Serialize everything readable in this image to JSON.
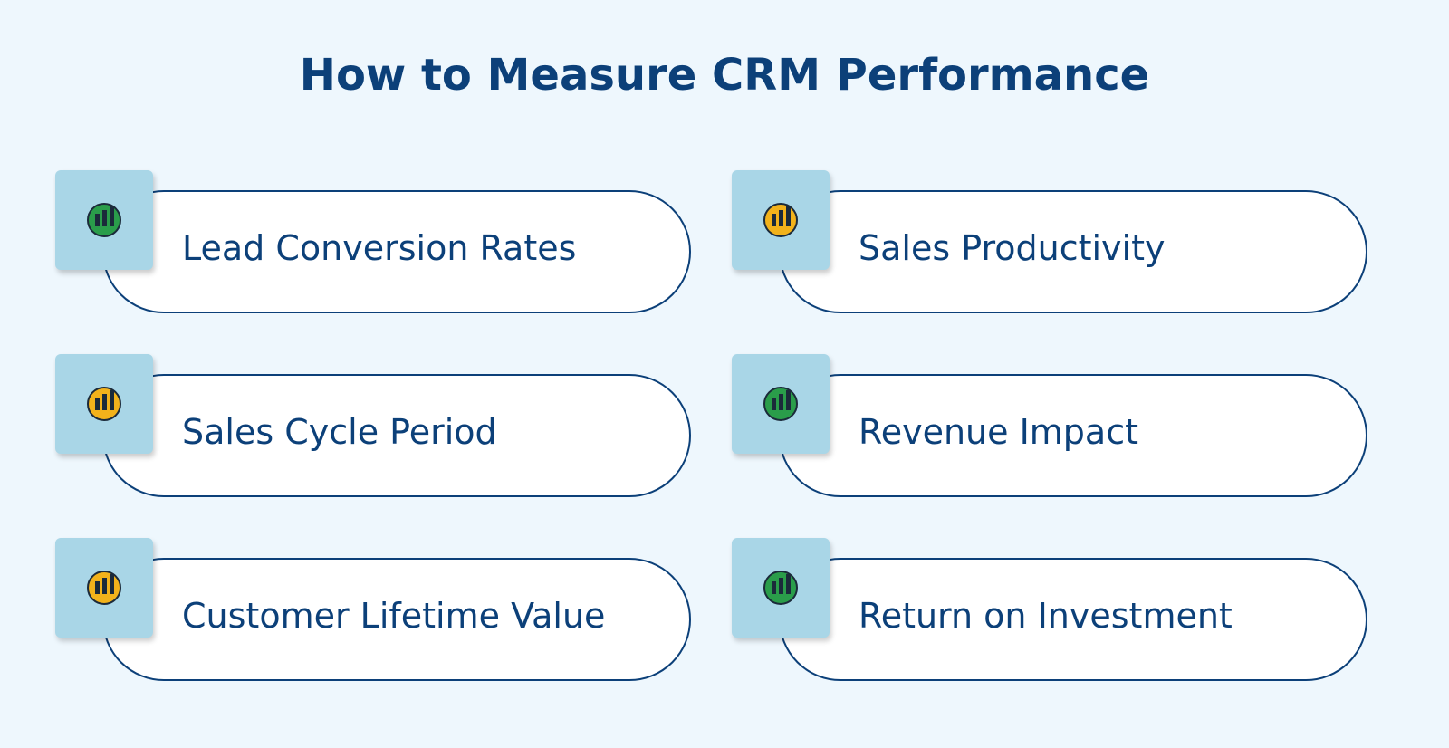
{
  "header": {
    "title": "How to Measure CRM Performance"
  },
  "items": [
    {
      "label": "Lead Conversion Rates"
    },
    {
      "label": "Sales Productivity"
    },
    {
      "label": "Sales Cycle Period"
    },
    {
      "label": "Revenue Impact"
    },
    {
      "label": "Customer Lifetime Value"
    },
    {
      "label": "Return on Investment"
    }
  ]
}
